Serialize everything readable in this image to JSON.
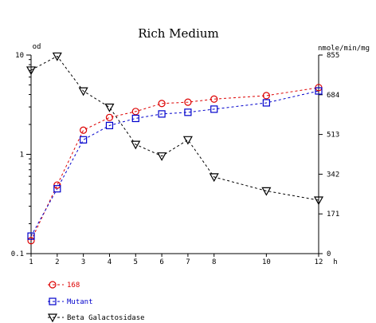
{
  "chart_data": {
    "type": "line",
    "title": "Rich Medium",
    "xlabel": "h",
    "ylabel": "od",
    "y2label": "nmole/min/mg",
    "x": [
      1,
      2,
      3,
      4,
      5,
      6,
      7,
      8,
      10,
      12
    ],
    "xticks": [
      "1",
      "2",
      "3",
      "4",
      "5",
      "6",
      "7",
      "8",
      "10",
      "12"
    ],
    "xlim": [
      1,
      12
    ],
    "ylim": [
      0.1,
      10
    ],
    "yscale": "log",
    "yticks": [
      "0.1",
      "1",
      "10"
    ],
    "y2lim": [
      0,
      855
    ],
    "y2ticks": [
      "0",
      "171",
      "342",
      "513",
      "684",
      "855"
    ],
    "grid": false,
    "legend_position": "bottom-left",
    "series": [
      {
        "name": "168",
        "axis": "left",
        "color": "#dd0000",
        "marker": "circle",
        "values": [
          0.135,
          0.49,
          1.75,
          2.35,
          2.7,
          3.25,
          3.35,
          3.6,
          3.9,
          4.7
        ]
      },
      {
        "name": "Mutant",
        "axis": "left",
        "color": "#0000cc",
        "marker": "square",
        "values": [
          0.15,
          0.45,
          1.4,
          1.95,
          2.3,
          2.55,
          2.65,
          2.85,
          3.3,
          4.35
        ]
      },
      {
        "name": "Beta Galactosidase",
        "axis": "right",
        "color": "#000000",
        "marker": "triangle-down",
        "values": [
          790,
          850,
          700,
          630,
          470,
          420,
          490,
          330,
          270,
          230
        ]
      }
    ]
  }
}
